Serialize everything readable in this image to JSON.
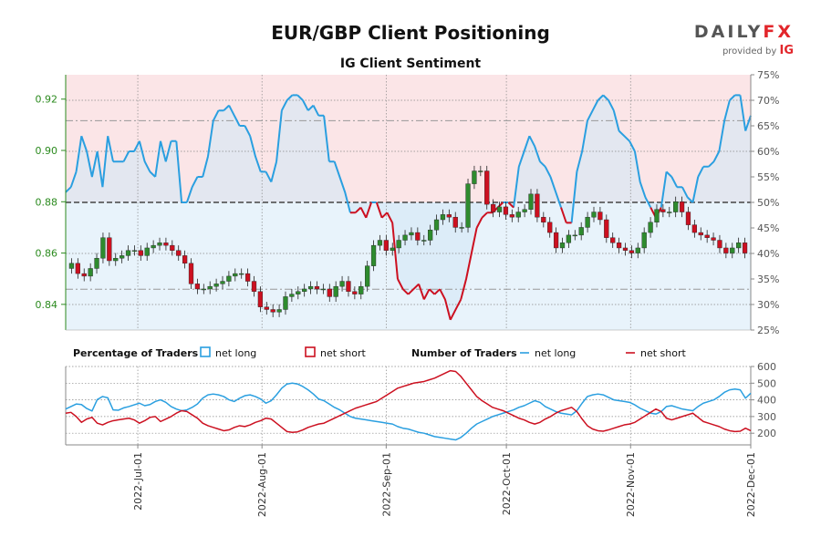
{
  "header": {
    "title": "EUR/GBP Client Positioning",
    "subtitle": "IG Client Sentiment",
    "brand_main": "DAILY",
    "brand_accent": "FX",
    "brand_provided": "provided by",
    "brand_ig": "IG"
  },
  "colors": {
    "long": "#2a9fe0",
    "short": "#cc1020",
    "long_fill": "#e8f3fb",
    "short_fill": "#fbe5e7",
    "candle_up": "#2e8b2e",
    "candle_down": "#cc1020",
    "price_axis": "#2b8a1e"
  },
  "chart_data": [
    {
      "type": "line",
      "title": "EUR/GBP Client Positioning",
      "subtitle": "IG Client Sentiment",
      "series": [
        {
          "name": "EUR/GBP",
          "values": [
            0.856,
            0.852,
            0.851,
            0.854,
            0.858,
            0.866,
            0.857,
            0.858,
            0.859,
            0.861,
            0.861,
            0.859,
            0.862,
            0.863,
            0.864,
            0.863,
            0.861,
            0.859,
            0.856,
            0.848,
            0.846,
            0.846,
            0.847,
            0.848,
            0.849,
            0.851,
            0.852,
            0.852,
            0.849,
            0.845,
            0.839,
            0.838,
            0.837,
            0.838,
            0.843,
            0.844,
            0.845,
            0.846,
            0.847,
            0.846,
            0.846,
            0.843,
            0.847,
            0.849,
            0.845,
            0.844,
            0.847,
            0.855,
            0.863,
            0.865,
            0.861,
            0.862,
            0.865,
            0.867,
            0.868,
            0.865,
            0.865,
            0.869,
            0.873,
            0.875,
            0.874,
            0.87,
            0.87,
            0.887,
            0.892,
            0.892,
            0.879,
            0.876,
            0.878,
            0.875,
            0.874,
            0.876,
            0.877,
            0.883,
            0.874,
            0.872,
            0.868,
            0.862,
            0.864,
            0.867,
            0.867,
            0.87,
            0.874,
            0.876,
            0.873,
            0.866,
            0.864,
            0.862,
            0.861,
            0.86,
            0.862,
            0.868,
            0.872,
            0.877,
            0.876,
            0.876,
            0.88,
            0.876,
            0.871,
            0.868,
            0.867,
            0.866,
            0.865,
            0.862,
            0.86,
            0.862,
            0.864,
            0.86
          ]
        }
      ],
      "x_ticks": [
        "2022-Jul-01",
        "2022-Aug-01",
        "2022-Sep-01",
        "2022-Oct-01",
        "2022-Nov-01",
        "2022-Dec-01"
      ],
      "x_range": [
        "2022-Jun-13",
        "2022-Dec-01"
      ],
      "price_ylim": [
        0.83,
        0.9295
      ],
      "price_ticks": [
        "0.84",
        "0.86",
        "0.88",
        "0.90",
        "0.92"
      ],
      "pct_ylim": [
        25,
        75
      ],
      "pct_ticks": [
        "25%",
        "30%",
        "35%",
        "40%",
        "45%",
        "50%",
        "55%",
        "60%",
        "65%",
        "70%",
        "75%"
      ],
      "pct_reference_lines": [
        50,
        33,
        66
      ],
      "grid": "dotted",
      "percentage_net_long": [
        52,
        53,
        56,
        63,
        60,
        55,
        60,
        53,
        63,
        58,
        58,
        58,
        60,
        60,
        62,
        58,
        56,
        55,
        62,
        58,
        62,
        62,
        50,
        50,
        53,
        55,
        55,
        59,
        66,
        68,
        68,
        69,
        67,
        65,
        65,
        63,
        59,
        56,
        56,
        54,
        58,
        68,
        70,
        71,
        71,
        70,
        68,
        69,
        67,
        67,
        58,
        58,
        55,
        52,
        48,
        48,
        49,
        47,
        50,
        50,
        47,
        48,
        46,
        35,
        33,
        32,
        33,
        34,
        31,
        33,
        32,
        33,
        31,
        27,
        29,
        31,
        35,
        40,
        45,
        47,
        48,
        48,
        49,
        50,
        50,
        49,
        57,
        60,
        63,
        61,
        58,
        57,
        55,
        52,
        49,
        46,
        46,
        56,
        60,
        66,
        68,
        70,
        71,
        70,
        68,
        64,
        63,
        62,
        60,
        54,
        51,
        49,
        47,
        49,
        56,
        55,
        53,
        53,
        51,
        50,
        55,
        57,
        57,
        58,
        60,
        66,
        70,
        71,
        71,
        64,
        67
      ],
      "percentage_net_short": [
        48,
        47,
        44,
        37,
        40,
        45,
        40,
        47,
        37,
        42,
        42,
        42,
        40,
        40,
        38,
        42,
        44,
        45,
        38,
        42,
        38,
        38,
        50,
        50,
        47,
        45,
        45,
        41,
        34,
        32,
        32,
        31,
        33,
        35,
        35,
        37,
        41,
        44,
        44,
        46,
        42,
        32,
        30,
        29,
        29,
        30,
        32,
        31,
        33,
        33,
        42,
        42,
        45,
        48,
        52,
        52,
        51,
        53,
        50,
        50,
        53,
        52,
        54,
        65,
        67,
        68,
        67,
        66,
        69,
        67,
        68,
        67,
        69,
        73,
        71,
        69,
        65,
        60,
        55,
        53,
        52,
        52,
        51,
        50,
        50,
        51,
        43,
        40,
        37,
        39,
        42,
        43,
        45,
        48,
        51,
        54,
        54,
        44,
        40,
        34,
        32,
        30,
        29,
        30,
        32,
        36,
        37,
        38,
        40,
        46,
        49,
        51,
        53,
        51,
        44,
        45,
        47,
        47,
        49,
        50,
        45,
        43,
        43,
        42,
        40,
        34,
        30,
        29,
        29,
        36,
        33
      ]
    },
    {
      "type": "line",
      "legend_percentage": {
        "title": "Percentage of Traders",
        "items": [
          "net long",
          "net short"
        ]
      },
      "legend_number": {
        "title": "Number of Traders",
        "items": [
          "net long",
          "net short"
        ]
      },
      "ylim": [
        130,
        600
      ],
      "y_ticks": [
        "200",
        "300",
        "400",
        "500",
        "600"
      ],
      "series": [
        {
          "name": "net long",
          "values": [
            345,
            360,
            375,
            372,
            348,
            333,
            402,
            420,
            412,
            340,
            338,
            352,
            360,
            370,
            380,
            365,
            372,
            390,
            400,
            385,
            360,
            345,
            335,
            340,
            355,
            375,
            410,
            430,
            435,
            430,
            420,
            400,
            390,
            410,
            425,
            430,
            420,
            405,
            380,
            395,
            430,
            470,
            495,
            500,
            495,
            480,
            460,
            435,
            405,
            395,
            375,
            355,
            340,
            320,
            300,
            290,
            285,
            280,
            275,
            270,
            265,
            260,
            255,
            240,
            230,
            225,
            215,
            205,
            200,
            190,
            180,
            175,
            170,
            165,
            160,
            175,
            200,
            230,
            255,
            270,
            285,
            300,
            310,
            320,
            330,
            340,
            355,
            365,
            380,
            395,
            385,
            360,
            345,
            330,
            320,
            315,
            310,
            335,
            380,
            420,
            430,
            435,
            430,
            415,
            400,
            395,
            390,
            385,
            370,
            350,
            335,
            320,
            315,
            330,
            360,
            365,
            355,
            345,
            340,
            335,
            360,
            380,
            390,
            400,
            420,
            445,
            460,
            465,
            460,
            410,
            440
          ]
        },
        {
          "name": "net short",
          "values": [
            320,
            325,
            300,
            265,
            285,
            295,
            260,
            250,
            265,
            275,
            280,
            285,
            290,
            280,
            260,
            275,
            295,
            300,
            270,
            285,
            300,
            320,
            335,
            330,
            310,
            290,
            260,
            245,
            235,
            225,
            215,
            220,
            235,
            245,
            240,
            250,
            265,
            275,
            290,
            285,
            260,
            235,
            210,
            205,
            208,
            220,
            235,
            245,
            255,
            260,
            275,
            290,
            305,
            320,
            335,
            350,
            360,
            370,
            380,
            390,
            410,
            430,
            450,
            470,
            480,
            490,
            500,
            505,
            510,
            520,
            530,
            545,
            560,
            575,
            570,
            540,
            500,
            460,
            420,
            395,
            375,
            355,
            345,
            335,
            320,
            305,
            290,
            280,
            265,
            255,
            265,
            285,
            300,
            320,
            335,
            345,
            355,
            330,
            285,
            245,
            225,
            215,
            212,
            220,
            230,
            240,
            250,
            255,
            265,
            285,
            305,
            325,
            345,
            330,
            290,
            280,
            290,
            300,
            310,
            320,
            295,
            270,
            260,
            250,
            240,
            225,
            215,
            210,
            212,
            230,
            215
          ]
        }
      ]
    }
  ]
}
